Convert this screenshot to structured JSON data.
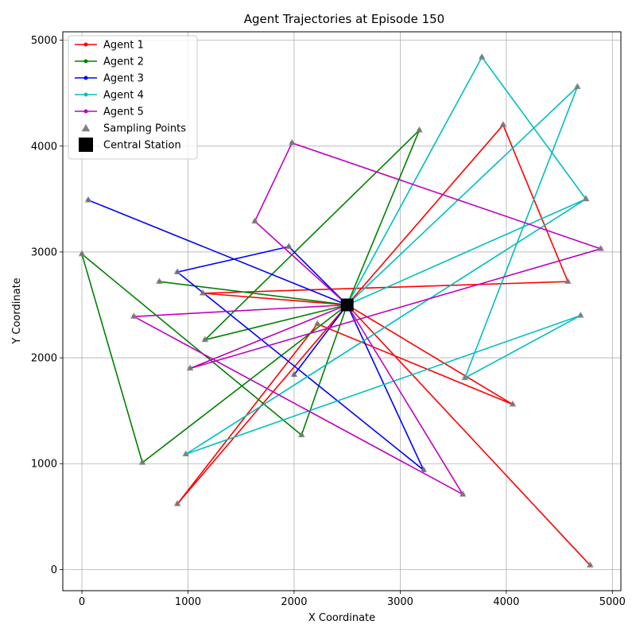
{
  "chart_data": {
    "type": "line",
    "title": "Agent Trajectories at Episode 150",
    "xlabel": "X Coordinate",
    "ylabel": "Y Coordinate",
    "xlim": [
      -180,
      5080
    ],
    "ylim": [
      -200,
      5080
    ],
    "xticks": [
      0,
      1000,
      2000,
      3000,
      4000,
      5000
    ],
    "yticks": [
      0,
      1000,
      2000,
      3000,
      4000,
      5000
    ],
    "grid": true,
    "legend_position": "top-left",
    "station": {
      "name": "Central Station",
      "x": 2500,
      "y": 2500,
      "color": "#000000"
    },
    "sampling_label": "Sampling Points",
    "sampling_color": "#808080",
    "series": [
      {
        "name": "Agent 1",
        "color": "#ff0000",
        "points": [
          [
            2500,
            2500
          ],
          [
            3970,
            4200
          ],
          [
            4580,
            2720
          ],
          [
            1140,
            2610
          ],
          [
            2500,
            2500
          ],
          [
            900,
            620
          ],
          [
            2220,
            2320
          ],
          [
            4060,
            1560
          ],
          [
            2500,
            2500
          ],
          [
            4790,
            40
          ]
        ]
      },
      {
        "name": "Agent 2",
        "color": "#008000",
        "points": [
          [
            2500,
            2500
          ],
          [
            3180,
            4150
          ],
          [
            1160,
            2170
          ],
          [
            2500,
            2500
          ],
          [
            570,
            1010
          ],
          [
            0,
            2980
          ],
          [
            2070,
            1270
          ],
          [
            2500,
            2500
          ],
          [
            730,
            2720
          ],
          [
            2500,
            2500
          ]
        ]
      },
      {
        "name": "Agent 3",
        "color": "#0000ff",
        "points": [
          [
            2500,
            2500
          ],
          [
            1950,
            3050
          ],
          [
            900,
            2810
          ],
          [
            3220,
            940
          ],
          [
            2500,
            2500
          ],
          [
            60,
            3490
          ],
          [
            2500,
            2500
          ],
          [
            2000,
            1840
          ],
          [
            2500,
            2500
          ]
        ]
      },
      {
        "name": "Agent 4",
        "color": "#00bfbf",
        "points": [
          [
            2500,
            2500
          ],
          [
            3770,
            4840
          ],
          [
            4750,
            3500
          ],
          [
            2500,
            2500
          ],
          [
            4670,
            4560
          ],
          [
            3610,
            1810
          ],
          [
            4700,
            2400
          ],
          [
            980,
            1090
          ],
          [
            4750,
            3500
          ],
          [
            2500,
            2500
          ]
        ]
      },
      {
        "name": "Agent 5",
        "color": "#bf00bf",
        "points": [
          [
            2500,
            2500
          ],
          [
            1630,
            3290
          ],
          [
            1980,
            4030
          ],
          [
            4890,
            3030
          ],
          [
            1020,
            1900
          ],
          [
            2500,
            2500
          ],
          [
            3590,
            710
          ],
          [
            490,
            2390
          ],
          [
            2500,
            2500
          ]
        ]
      }
    ]
  }
}
